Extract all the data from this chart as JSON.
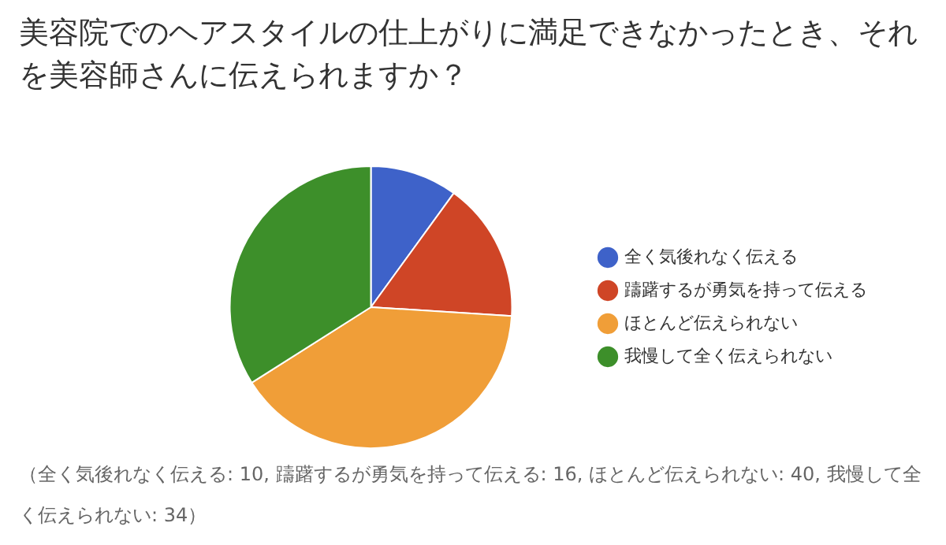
{
  "chart_data": {
    "type": "pie",
    "title": "美容院でのヘアスタイルの仕上がりに満足できなかったとき、それを美容師さんに伝えられますか？",
    "categories": [
      "全く気後れなく伝える",
      "躊躇するが勇気を持って伝える",
      "ほとんど伝えられない",
      "我慢して全く伝えられない"
    ],
    "values": [
      10,
      16,
      40,
      34
    ],
    "colors": [
      "#3e62c9",
      "#cf4526",
      "#f09e38",
      "#3d8f2a"
    ],
    "legend": "right",
    "annotations": [
      "（全く気後れなく伝える: 10, 躊躇するが勇気を持って伝える: 16, ほとんど伝えられない: 40, 我慢して全く伝えられない: 34）"
    ]
  }
}
